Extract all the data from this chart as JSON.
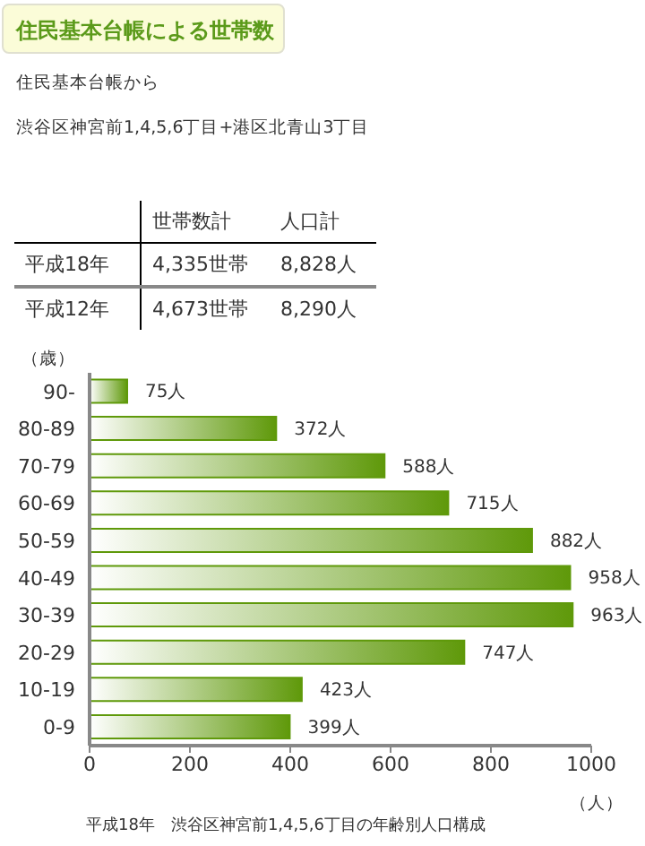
{
  "chart_data": [
    {
      "type": "other",
      "title": "住民基本台帳による世帯数",
      "subtitle": "住民基本台帳から",
      "annotations": [
        "渋谷区神宮前1,4,5,6丁目+港区北青山3丁目",
        "世帯数計",
        "人口計",
        "平成18年",
        "4,335世帯",
        "8,828人",
        "平成12年",
        "4,673世帯",
        "8,290人"
      ]
    },
    {
      "type": "bar",
      "orientation": "horizontal",
      "categories": [
        "90-",
        "80-89",
        "70-79",
        "60-69",
        "50-59",
        "40-49",
        "30-39",
        "20-29",
        "10-19",
        "0-9"
      ],
      "values": [
        75,
        372,
        588,
        715,
        882,
        958,
        963,
        747,
        423,
        399
      ],
      "value_labels": [
        "75人",
        "372人",
        "588人",
        "715人",
        "882人",
        "958人",
        "963人",
        "747人",
        "423人",
        "399人"
      ],
      "color": "#5f990a",
      "xlim": [
        0,
        1000
      ],
      "xticks": [
        0,
        200,
        400,
        600,
        800,
        1000
      ],
      "ylabel": "（歳）",
      "xlabel": "（人）",
      "annotations": [
        "平成18年　渋谷区神宮前1,4,5,6丁目の年齢別人口構成"
      ]
    }
  ]
}
